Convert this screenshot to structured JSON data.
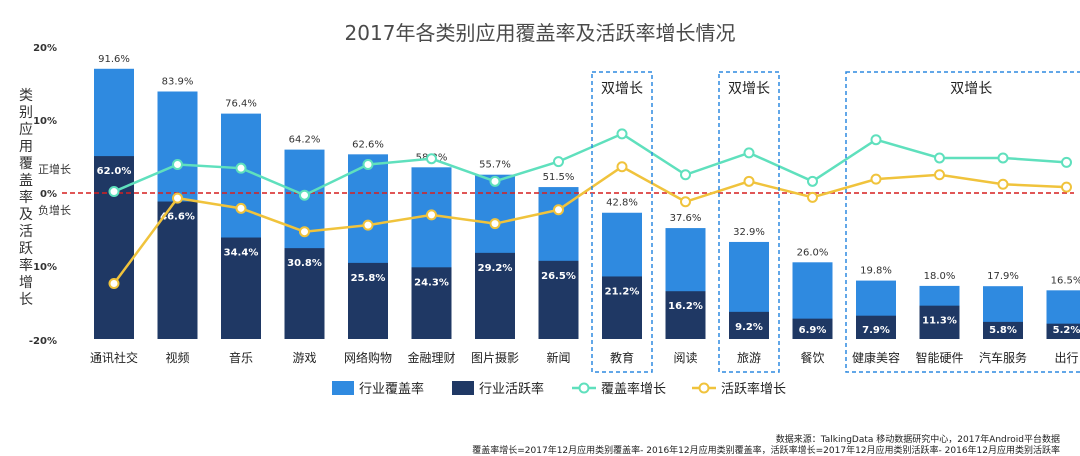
{
  "chart_data": {
    "type": "bar",
    "title": "2017年各类别应用覆盖率及活跃率增长情况",
    "ylabel": "类别应用覆盖率及活跃率增长",
    "y_axis_ticks": [
      "20%",
      "10%",
      "0%",
      "10%",
      "-20%"
    ],
    "zone_labels": {
      "positive": "正增长",
      "negative": "负增长"
    },
    "categories": [
      "通讯社交",
      "视频",
      "音乐",
      "游戏",
      "网络购物",
      "金融理财",
      "图片摄影",
      "新闻",
      "教育",
      "阅读",
      "旅游",
      "餐饮",
      "健康美容",
      "智能硬件",
      "汽车服务",
      "出行"
    ],
    "series": [
      {
        "name": "行业覆盖率",
        "values": [
          91.6,
          83.9,
          76.4,
          64.2,
          62.6,
          58.2,
          55.7,
          51.5,
          42.8,
          37.6,
          32.9,
          26.0,
          19.8,
          18.0,
          17.9,
          16.5
        ],
        "labels": [
          "91.6%",
          "83.9%",
          "76.4%",
          "64.2%",
          "62.6%",
          "58.2%",
          "55.7%",
          "51.5%",
          "42.8%",
          "37.6%",
          "32.9%",
          "26.0%",
          "19.8%",
          "18.0%",
          "17.9%",
          "16.5%"
        ],
        "color": "#2f8ae0"
      },
      {
        "name": "行业活跃率",
        "values": [
          62.0,
          46.6,
          34.4,
          30.8,
          25.8,
          24.3,
          29.2,
          26.5,
          21.2,
          16.2,
          9.2,
          6.9,
          7.9,
          11.3,
          5.8,
          5.2
        ],
        "labels": [
          "62.0%",
          "46.6%",
          "34.4%",
          "30.8%",
          "25.8%",
          "24.3%",
          "29.2%",
          "26.5%",
          "21.2%",
          "16.2%",
          "9.2%",
          "6.9%",
          "7.9%",
          "11.3%",
          "5.8%",
          "5.2%"
        ],
        "color": "#1f3864"
      },
      {
        "name": "覆盖率增长",
        "values": [
          0.2,
          3.9,
          3.4,
          -0.3,
          3.9,
          4.7,
          1.6,
          4.3,
          8.1,
          2.5,
          5.5,
          1.6,
          7.3,
          4.8,
          4.8,
          4.2
        ],
        "color": "#5fe0bd"
      },
      {
        "name": "活跃率增长",
        "values": [
          -12.4,
          -0.7,
          -2.1,
          -5.3,
          -4.4,
          -3.0,
          -4.2,
          -2.3,
          3.6,
          -1.2,
          1.6,
          -0.6,
          1.9,
          2.5,
          1.2,
          0.8
        ],
        "color": "#f0c33c"
      }
    ],
    "growth_ylim": [
      -20,
      20
    ],
    "annotations": [
      {
        "text": "双增长",
        "from": "教育",
        "to": "教育"
      },
      {
        "text": "双增长",
        "from": "旅游",
        "to": "旅游"
      },
      {
        "text": "双增长",
        "from": "健康美容",
        "to": "出行"
      }
    ]
  },
  "source": {
    "line1": "数据来源：TalkingData 移动数据研究中心，2017年Android平台数据",
    "line2": "覆盖率增长=2017年12月应用类别覆盖率- 2016年12月应用类别覆盖率，活跃率增长=2017年12月应用类别活跃率- 2016年12月应用类别活跃率"
  }
}
